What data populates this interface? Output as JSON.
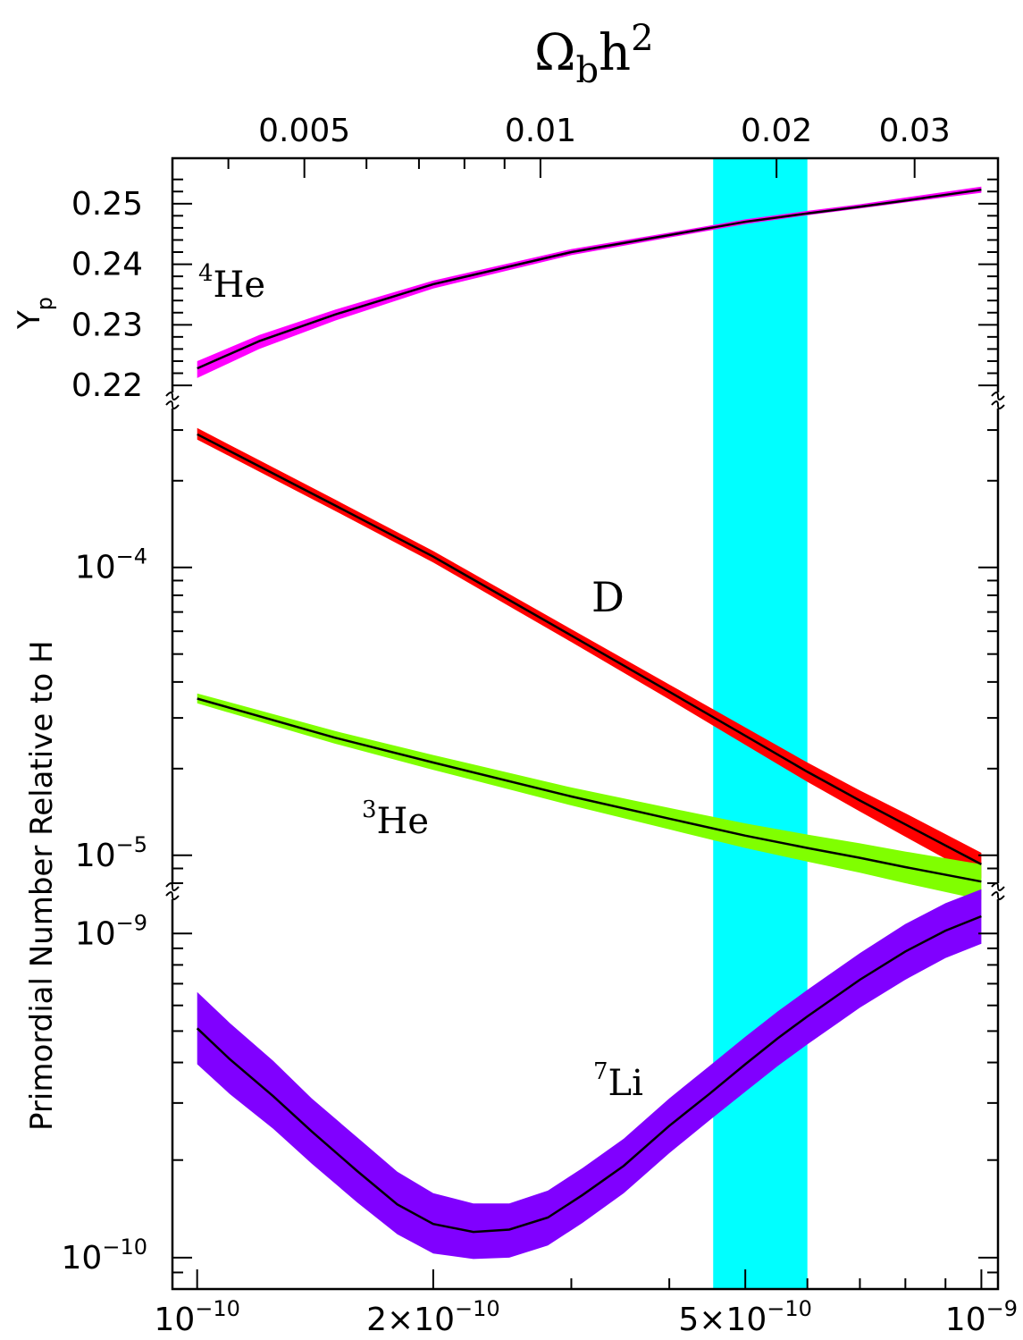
{
  "chart_data": {
    "type": "line",
    "colors": {
      "he4_band": "#ff00ff",
      "d_band": "#ff0000",
      "he3_band": "#80ff00",
      "li7_band": "#8000ff",
      "cmb_band": "#00ffff",
      "line": "#000000"
    },
    "x_axis": {
      "scale": "log",
      "range": [
        9.3e-11,
        1.05e-09
      ],
      "ticks": [
        1e-10,
        2e-10,
        5e-10,
        1e-09
      ],
      "tick_labels": [
        "10",
        "2×10",
        "5×10",
        "10"
      ],
      "tick_exponents": [
        "−10",
        "−10",
        "−10",
        "−9"
      ]
    },
    "top_axis": {
      "label_main": "Ω",
      "label_sub": "b",
      "label_h": "h",
      "label_sup": "2",
      "ticks": [
        0.005,
        0.01,
        0.02,
        0.03
      ],
      "tick_labels": [
        "0.005",
        "0.01",
        "0.02",
        "0.03"
      ]
    },
    "ylabel": "Primordial Number Relative to H",
    "yp_label": {
      "main": "Y",
      "sub": "p"
    },
    "he4_panel": {
      "scale": "linear",
      "range": [
        0.2175,
        0.2575
      ],
      "ticks": [
        0.22,
        0.23,
        0.24,
        0.25
      ],
      "tick_labels": [
        "0.22",
        "0.23",
        "0.24",
        "0.25"
      ]
    },
    "dhe3_panel": {
      "scale": "log",
      "range": [
        7.5e-06,
        0.00038
      ],
      "tick_base": [
        "10",
        "10"
      ],
      "tick_exponents": [
        "−4",
        "−5"
      ],
      "tick_values": [
        0.0001,
        1e-05
      ]
    },
    "li_panel": {
      "scale": "log",
      "range": [
        8e-11,
        1.35e-09
      ],
      "tick_base": [
        "10",
        "10"
      ],
      "tick_exponents": [
        "−9",
        "−10"
      ],
      "tick_values": [
        1e-09,
        1e-10
      ]
    },
    "cmb_band": {
      "x_range": [
        4.55e-10,
        6e-10
      ]
    },
    "series": [
      {
        "name": "4He",
        "panel": "he4",
        "x": [
          1e-10,
          1.2e-10,
          1.5e-10,
          2e-10,
          3e-10,
          4e-10,
          5e-10,
          6e-10,
          7e-10,
          8e-10,
          1e-09
        ],
        "y": [
          0.2228,
          0.2273,
          0.2317,
          0.2367,
          0.242,
          0.2448,
          0.247,
          0.2484,
          0.2495,
          0.2505,
          0.2523
        ],
        "lower": [
          0.2212,
          0.226,
          0.2307,
          0.236,
          0.2415,
          0.2444,
          0.2466,
          0.2481,
          0.2492,
          0.2502,
          0.2518
        ],
        "upper": [
          0.224,
          0.2283,
          0.2325,
          0.2373,
          0.2425,
          0.2452,
          0.2474,
          0.2488,
          0.2499,
          0.251,
          0.2528
        ]
      },
      {
        "name": "D",
        "panel": "dhe3",
        "x": [
          1e-10,
          1.5e-10,
          2e-10,
          3e-10,
          4e-10,
          5e-10,
          6e-10,
          7e-10,
          8e-10,
          1e-09
        ],
        "y": [
          0.00029,
          0.000164,
          0.000109,
          5.8e-05,
          3.7e-05,
          2.6e-05,
          1.95e-05,
          1.55e-05,
          1.28e-05,
          9.3e-06
        ],
        "lower": [
          0.000278,
          0.000157,
          0.000104,
          5.5e-05,
          3.48e-05,
          2.42e-05,
          1.8e-05,
          1.42e-05,
          1.16e-05,
          8.3e-06
        ],
        "upper": [
          0.000305,
          0.000172,
          0.000114,
          6.1e-05,
          3.92e-05,
          2.78e-05,
          2.1e-05,
          1.68e-05,
          1.4e-05,
          1.02e-05
        ]
      },
      {
        "name": "3He",
        "panel": "dhe3",
        "x": [
          1e-10,
          1.5e-10,
          2e-10,
          3e-10,
          4e-10,
          5e-10,
          6e-10,
          7e-10,
          8e-10,
          1e-09
        ],
        "y": [
          3.5e-05,
          2.56e-05,
          2.1e-05,
          1.6e-05,
          1.34e-05,
          1.17e-05,
          1.06e-05,
          9.8e-06,
          9.1e-06,
          8.1e-06
        ],
        "lower": [
          3.37e-05,
          2.44e-05,
          1.98e-05,
          1.49e-05,
          1.23e-05,
          1.06e-05,
          9.5e-06,
          8.7e-06,
          8e-06,
          7e-06
        ],
        "upper": [
          3.65e-05,
          2.7e-05,
          2.23e-05,
          1.72e-05,
          1.46e-05,
          1.29e-05,
          1.18e-05,
          1.1e-05,
          1.03e-05,
          9.3e-06
        ]
      },
      {
        "name": "7Li",
        "panel": "li",
        "x": [
          1e-10,
          1.1e-10,
          1.25e-10,
          1.4e-10,
          1.6e-10,
          1.8e-10,
          2e-10,
          2.25e-10,
          2.5e-10,
          2.8e-10,
          3.1e-10,
          3.5e-10,
          4e-10,
          4.5e-10,
          5e-10,
          5.5e-10,
          6e-10,
          7e-10,
          8e-10,
          9e-10,
          1e-09
        ],
        "y": [
          5.1e-10,
          4.1e-10,
          3.15e-10,
          2.45e-10,
          1.85e-10,
          1.46e-10,
          1.27e-10,
          1.2e-10,
          1.22e-10,
          1.33e-10,
          1.56e-10,
          1.92e-10,
          2.55e-10,
          3.2e-10,
          3.95e-10,
          4.75e-10,
          5.55e-10,
          7.2e-10,
          8.8e-10,
          1.02e-09,
          1.13e-09
        ],
        "lower": [
          3.95e-10,
          3.2e-10,
          2.5e-10,
          1.95e-10,
          1.48e-10,
          1.18e-10,
          1.03e-10,
          9.9e-11,
          1e-10,
          1.09e-10,
          1.28e-10,
          1.58e-10,
          2.1e-10,
          2.65e-10,
          3.25e-10,
          3.9e-10,
          4.55e-10,
          5.9e-10,
          7.2e-10,
          8.4e-10,
          9.3e-10
        ],
        "upper": [
          6.6e-10,
          5.3e-10,
          4.05e-10,
          3.1e-10,
          2.35e-10,
          1.84e-10,
          1.58e-10,
          1.47e-10,
          1.47e-10,
          1.61e-10,
          1.89e-10,
          2.33e-10,
          3.1e-10,
          3.9e-10,
          4.8e-10,
          5.75e-10,
          6.7e-10,
          8.7e-10,
          1.07e-09,
          1.24e-09,
          1.37e-09
        ]
      }
    ],
    "annotations": [
      {
        "id": "he4",
        "main": "He",
        "sup": "4"
      },
      {
        "id": "d",
        "main": "D",
        "sup": ""
      },
      {
        "id": "he3",
        "main": "He",
        "sup": "3"
      },
      {
        "id": "li7",
        "main": "Li",
        "sup": "7"
      }
    ]
  }
}
